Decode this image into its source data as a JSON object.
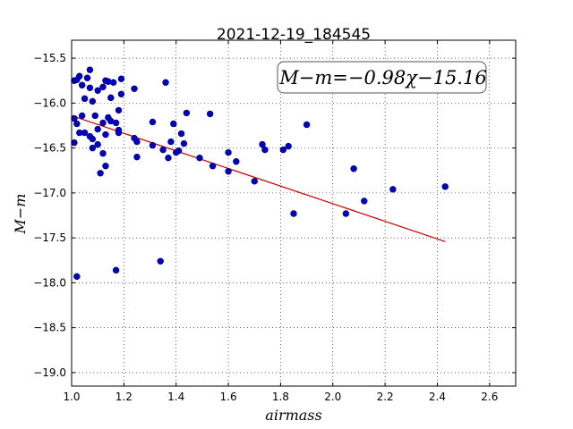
{
  "chart_data": {
    "type": "scatter",
    "title": "2021-12-19_184545",
    "xlabel": "airmass",
    "ylabel": "M−m",
    "xlim": [
      1.0,
      2.7
    ],
    "ylim": [
      -19.15,
      -15.3
    ],
    "xticks": [
      1.0,
      1.2,
      1.4,
      1.6,
      1.8,
      2.0,
      2.2,
      2.4,
      2.6
    ],
    "xtick_labels": [
      "1.0",
      "1.2",
      "1.4",
      "1.6",
      "1.8",
      "2.0",
      "2.2",
      "2.4",
      "2.6"
    ],
    "yticks": [
      -15.5,
      -16.0,
      -16.5,
      -17.0,
      -17.5,
      -18.0,
      -18.5,
      -19.0
    ],
    "ytick_labels": [
      "−15.5",
      "−16.0",
      "−16.5",
      "−17.0",
      "−17.5",
      "−18.0",
      "−18.5",
      "−19.0"
    ],
    "grid": true,
    "annotation": "M−m=−0.98χ−15.16",
    "series": [
      {
        "kind": "scatter",
        "color": "#0000cc",
        "points": [
          [
            1.01,
            -15.75
          ],
          [
            1.02,
            -15.74
          ],
          [
            1.03,
            -15.7
          ],
          [
            1.04,
            -15.8
          ],
          [
            1.06,
            -15.72
          ],
          [
            1.07,
            -15.63
          ],
          [
            1.05,
            -15.95
          ],
          [
            1.07,
            -15.83
          ],
          [
            1.08,
            -15.98
          ],
          [
            1.1,
            -15.86
          ],
          [
            1.12,
            -15.82
          ],
          [
            1.13,
            -15.75
          ],
          [
            1.14,
            -15.76
          ],
          [
            1.16,
            -15.77
          ],
          [
            1.19,
            -15.73
          ],
          [
            1.15,
            -15.94
          ],
          [
            1.19,
            -15.9
          ],
          [
            1.24,
            -15.84
          ],
          [
            1.36,
            -15.77
          ],
          [
            1.01,
            -16.17
          ],
          [
            1.02,
            -16.23
          ],
          [
            1.03,
            -16.33
          ],
          [
            1.04,
            -16.14
          ],
          [
            1.05,
            -16.33
          ],
          [
            1.07,
            -16.37
          ],
          [
            1.08,
            -16.4
          ],
          [
            1.09,
            -16.14
          ],
          [
            1.1,
            -16.29
          ],
          [
            1.12,
            -16.22
          ],
          [
            1.13,
            -16.35
          ],
          [
            1.14,
            -16.16
          ],
          [
            1.15,
            -16.2
          ],
          [
            1.17,
            -16.22
          ],
          [
            1.18,
            -16.08
          ],
          [
            1.18,
            -16.3
          ],
          [
            1.18,
            -16.33
          ],
          [
            1.01,
            -16.44
          ],
          [
            1.08,
            -16.5
          ],
          [
            1.1,
            -16.46
          ],
          [
            1.12,
            -16.56
          ],
          [
            1.11,
            -16.78
          ],
          [
            1.13,
            -16.7
          ],
          [
            1.24,
            -16.39
          ],
          [
            1.25,
            -16.43
          ],
          [
            1.25,
            -16.6
          ],
          [
            1.31,
            -16.21
          ],
          [
            1.31,
            -16.47
          ],
          [
            1.35,
            -16.52
          ],
          [
            1.38,
            -16.43
          ],
          [
            1.39,
            -16.23
          ],
          [
            1.37,
            -16.61
          ],
          [
            1.4,
            -16.55
          ],
          [
            1.42,
            -16.34
          ],
          [
            1.43,
            -16.45
          ],
          [
            1.41,
            -16.53
          ],
          [
            1.44,
            -16.11
          ],
          [
            1.49,
            -16.61
          ],
          [
            1.53,
            -16.12
          ],
          [
            1.54,
            -16.7
          ],
          [
            1.6,
            -16.55
          ],
          [
            1.6,
            -16.76
          ],
          [
            1.63,
            -16.65
          ],
          [
            1.7,
            -16.87
          ],
          [
            1.73,
            -16.46
          ],
          [
            1.74,
            -16.52
          ],
          [
            1.81,
            -16.52
          ],
          [
            1.83,
            -16.48
          ],
          [
            1.85,
            -17.23
          ],
          [
            1.9,
            -16.24
          ],
          [
            2.05,
            -17.23
          ],
          [
            2.08,
            -16.73
          ],
          [
            2.12,
            -17.09
          ],
          [
            2.23,
            -16.96
          ],
          [
            2.43,
            -16.93
          ],
          [
            1.34,
            -17.76
          ],
          [
            1.17,
            -17.86
          ],
          [
            1.02,
            -17.93
          ]
        ]
      },
      {
        "kind": "fit-line",
        "color": "#cc0000",
        "slope": -0.98,
        "intercept": -15.16,
        "x_range": [
          1.02,
          2.43
        ]
      }
    ]
  }
}
